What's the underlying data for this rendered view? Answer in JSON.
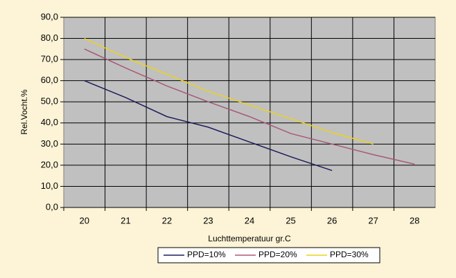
{
  "chart_data": {
    "type": "line",
    "x_label": "Luchttemperatuur gr.C",
    "y_label": "Rel.Vocht.%",
    "categories": [
      "20",
      "21",
      "22",
      "23",
      "24",
      "25",
      "26",
      "27",
      "28"
    ],
    "series": [
      {
        "name": "PPD=10%",
        "color": "#1c1c5c",
        "values": [
          60,
          52,
          43,
          38,
          31,
          24,
          17.5,
          null,
          null
        ]
      },
      {
        "name": "PPD=20%",
        "color": "#a85878",
        "values": [
          75,
          66,
          57.5,
          50,
          43,
          35,
          30,
          25,
          20.5
        ]
      },
      {
        "name": "PPD=30%",
        "color": "#ecd21e",
        "values": [
          80,
          71,
          63,
          55,
          48.5,
          42,
          35.5,
          30,
          null
        ]
      }
    ],
    "ylim": [
      0,
      90
    ],
    "yticks": [
      {
        "value": 0,
        "label": "0,0"
      },
      {
        "value": 10,
        "label": "10,0"
      },
      {
        "value": 20,
        "label": "20,0"
      },
      {
        "value": 30,
        "label": "30,0"
      },
      {
        "value": 40,
        "label": "40,0"
      },
      {
        "value": 50,
        "label": "50,0"
      },
      {
        "value": 60,
        "label": "60,0"
      },
      {
        "value": 70,
        "label": "70,0"
      },
      {
        "value": 80,
        "label": "80,0"
      },
      {
        "value": 90,
        "label": "90,0"
      }
    ],
    "grid": true,
    "legend": "bottom"
  }
}
